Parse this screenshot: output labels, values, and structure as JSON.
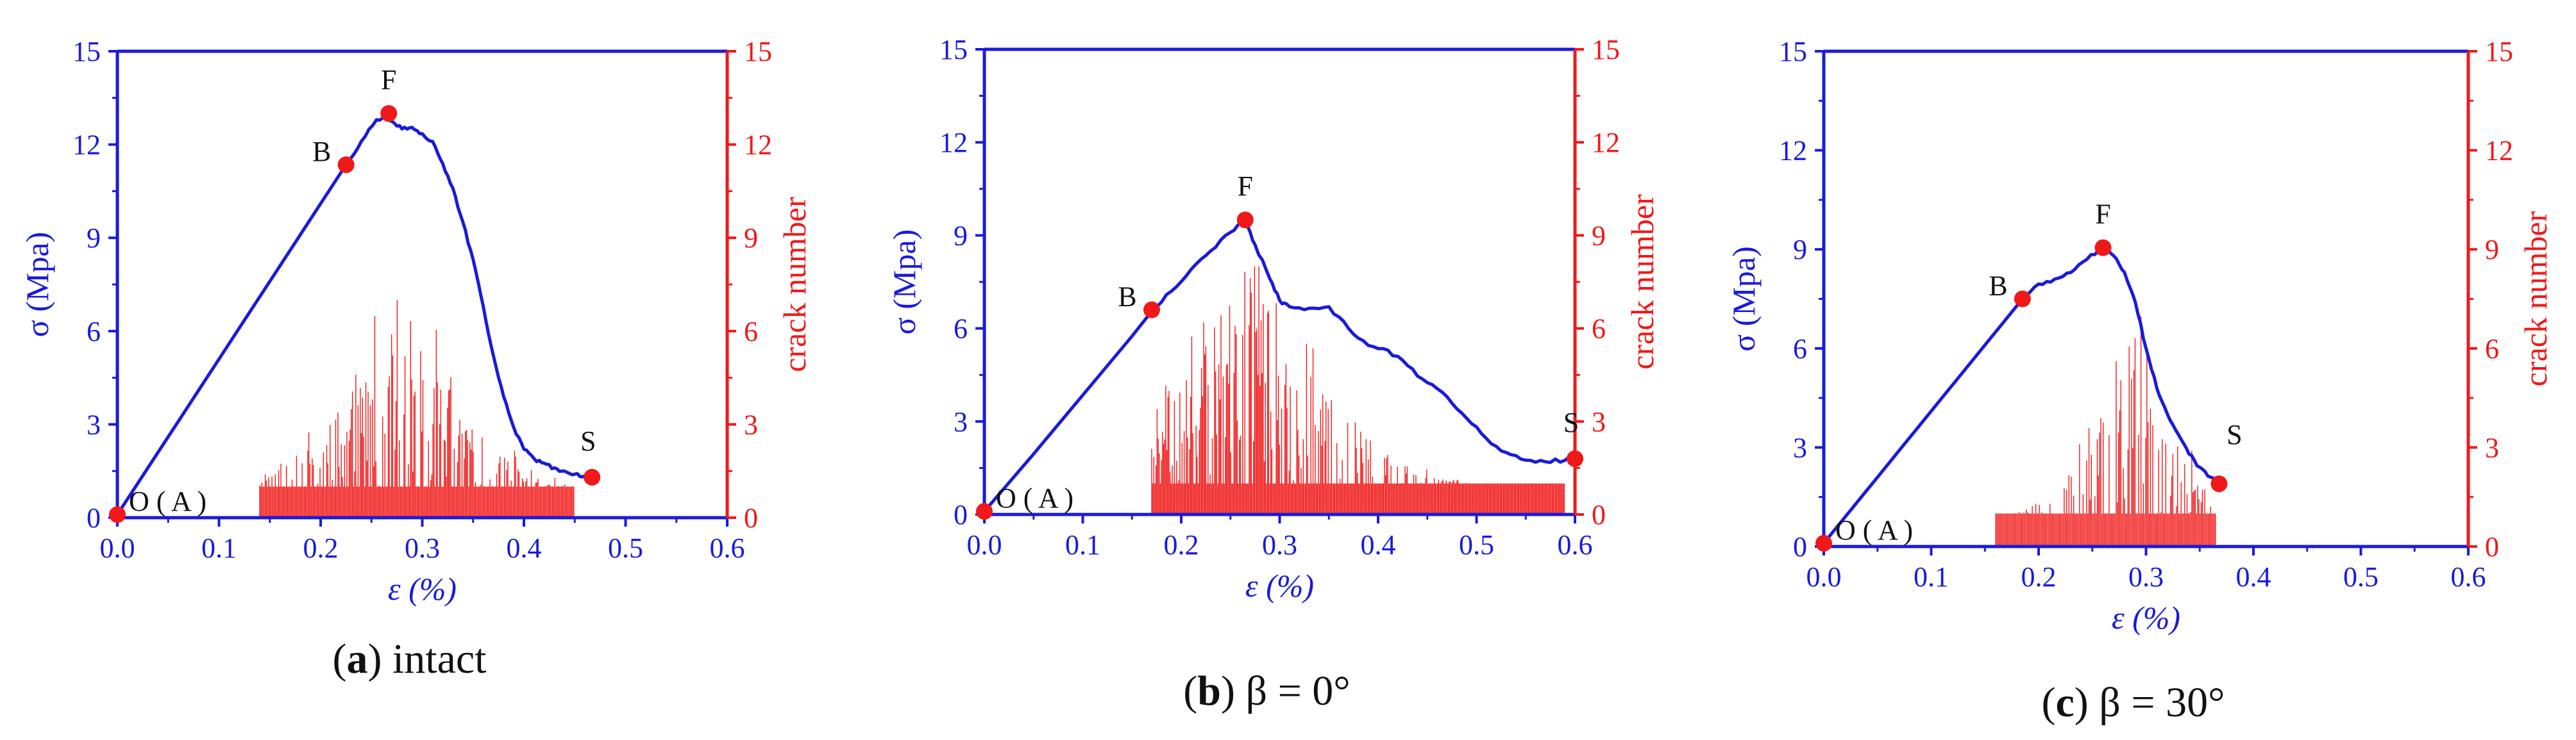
{
  "colors": {
    "left_axis": "#1a1adb",
    "right_axis": "#f01818",
    "stress_curve": "#1a1adb",
    "crack_bars": "#f01818",
    "markers": "#f01818",
    "text": "#111111"
  },
  "chart_data": [
    {
      "type": "line",
      "panel_label": "a",
      "caption": "intact",
      "xlabel": "ε (%)",
      "ylabel_left": "σ (Mpa)",
      "ylabel_right": "crack number",
      "xlim": [
        0,
        0.6
      ],
      "ylim_left": [
        0,
        15
      ],
      "ylim_right": [
        0,
        15
      ],
      "x_ticks": [
        "0.0",
        "0.1",
        "0.2",
        "0.3",
        "0.4",
        "0.5",
        "0.6"
      ],
      "y_ticks_left": [
        "0",
        "3",
        "6",
        "9",
        "12",
        "15"
      ],
      "y_ticks_right": [
        "0",
        "3",
        "6",
        "9",
        "12",
        "15"
      ],
      "series": [
        {
          "name": "stress-strain",
          "axis": "left",
          "x": [
            0,
            0.05,
            0.1,
            0.15,
            0.2,
            0.225,
            0.24,
            0.255,
            0.265,
            0.27,
            0.28,
            0.29,
            0.3,
            0.31,
            0.32,
            0.33,
            0.34,
            0.35,
            0.36,
            0.37,
            0.38,
            0.39,
            0.4,
            0.41,
            0.42,
            0.43,
            0.44,
            0.45,
            0.46,
            0.467
          ],
          "y": [
            0.1,
            2.6,
            5.1,
            7.6,
            10.1,
            11.35,
            12.1,
            12.8,
            12.95,
            12.75,
            12.5,
            12.55,
            12.35,
            12.1,
            11.4,
            10.6,
            9.5,
            8.3,
            6.8,
            5.2,
            3.9,
            2.9,
            2.2,
            1.9,
            1.75,
            1.6,
            1.5,
            1.4,
            1.35,
            1.3
          ]
        },
        {
          "name": "crack number",
          "axis": "right",
          "type": "spikes",
          "x_start": 0.14,
          "x_end": 0.45,
          "peak_x": 0.28,
          "peak_value": 7,
          "min_value": 1
        }
      ],
      "points": [
        {
          "label": "O ( A )",
          "x": 0,
          "y": 0.1
        },
        {
          "label": "B",
          "x": 0.225,
          "y": 11.35
        },
        {
          "label": "F",
          "x": 0.267,
          "y": 13.0
        },
        {
          "label": "S",
          "x": 0.467,
          "y": 1.3
        }
      ]
    },
    {
      "type": "line",
      "panel_label": "b",
      "caption": "β = 0°",
      "xlabel": "ε (%)",
      "ylabel_left": "σ (Mpa)",
      "ylabel_right": "crack number",
      "xlim": [
        0,
        0.6
      ],
      "ylim_left": [
        0,
        15
      ],
      "ylim_right": [
        0,
        15
      ],
      "x_ticks": [
        "0.0",
        "0.1",
        "0.2",
        "0.3",
        "0.4",
        "0.5",
        "0.6"
      ],
      "y_ticks_left": [
        "0",
        "3",
        "6",
        "9",
        "12",
        "15"
      ],
      "y_ticks_right": [
        "0",
        "3",
        "6",
        "9",
        "12",
        "15"
      ],
      "series": [
        {
          "name": "stress-strain",
          "axis": "left",
          "x": [
            0,
            0.05,
            0.1,
            0.15,
            0.17,
            0.19,
            0.21,
            0.23,
            0.25,
            0.265,
            0.275,
            0.29,
            0.3,
            0.31,
            0.33,
            0.35,
            0.37,
            0.39,
            0.41,
            0.43,
            0.45,
            0.47,
            0.49,
            0.51,
            0.53,
            0.55,
            0.57,
            0.59,
            0.6
          ],
          "y": [
            0.1,
            1.95,
            3.85,
            5.75,
            6.55,
            7.2,
            7.9,
            8.5,
            9.1,
            9.5,
            8.7,
            7.6,
            6.9,
            6.7,
            6.65,
            6.7,
            6.0,
            5.45,
            5.3,
            4.8,
            4.25,
            3.8,
            3.1,
            2.45,
            2.0,
            1.75,
            1.7,
            1.75,
            1.8
          ]
        },
        {
          "name": "crack number",
          "axis": "right",
          "type": "spikes",
          "x_start": 0.17,
          "x_end": 0.59,
          "peak_x": 0.265,
          "peak_value": 8,
          "min_value": 1
        }
      ],
      "points": [
        {
          "label": "O ( A )",
          "x": 0,
          "y": 0.1
        },
        {
          "label": "B",
          "x": 0.17,
          "y": 6.6
        },
        {
          "label": "F",
          "x": 0.265,
          "y": 9.5
        },
        {
          "label": "S",
          "x": 0.6,
          "y": 1.8
        }
      ]
    },
    {
      "type": "line",
      "panel_label": "c",
      "caption": "β = 30°",
      "xlabel": "ε (%)",
      "ylabel_left": "σ (Mpa)",
      "ylabel_right": "crack number",
      "xlim": [
        0,
        0.6
      ],
      "ylim_left": [
        0,
        15
      ],
      "ylim_right": [
        0,
        15
      ],
      "x_ticks": [
        "0.0",
        "0.1",
        "0.2",
        "0.3",
        "0.4",
        "0.5",
        "0.6"
      ],
      "y_ticks_left": [
        "0",
        "3",
        "6",
        "9",
        "12",
        "15"
      ],
      "y_ticks_right": [
        "0",
        "3",
        "6",
        "9",
        "12",
        "15"
      ],
      "series": [
        {
          "name": "stress-strain",
          "axis": "left",
          "x": [
            0,
            0.05,
            0.1,
            0.15,
            0.185,
            0.2,
            0.215,
            0.23,
            0.245,
            0.26,
            0.27,
            0.28,
            0.29,
            0.3,
            0.31,
            0.32,
            0.33,
            0.34,
            0.35,
            0.36,
            0.368
          ],
          "y": [
            0.1,
            2.1,
            4.1,
            6.1,
            7.5,
            7.95,
            8.1,
            8.3,
            8.7,
            9.05,
            8.8,
            8.3,
            7.4,
            6.0,
            4.8,
            4.0,
            3.4,
            2.8,
            2.4,
            2.1,
            1.9
          ]
        },
        {
          "name": "crack number",
          "axis": "right",
          "type": "spikes",
          "x_start": 0.16,
          "x_end": 0.365,
          "peak_x": 0.285,
          "peak_value": 7,
          "min_value": 1
        }
      ],
      "points": [
        {
          "label": "O ( A )",
          "x": 0,
          "y": 0.1
        },
        {
          "label": "B",
          "x": 0.185,
          "y": 7.5
        },
        {
          "label": "F",
          "x": 0.26,
          "y": 9.05
        },
        {
          "label": "S",
          "x": 0.368,
          "y": 1.9
        }
      ]
    }
  ]
}
